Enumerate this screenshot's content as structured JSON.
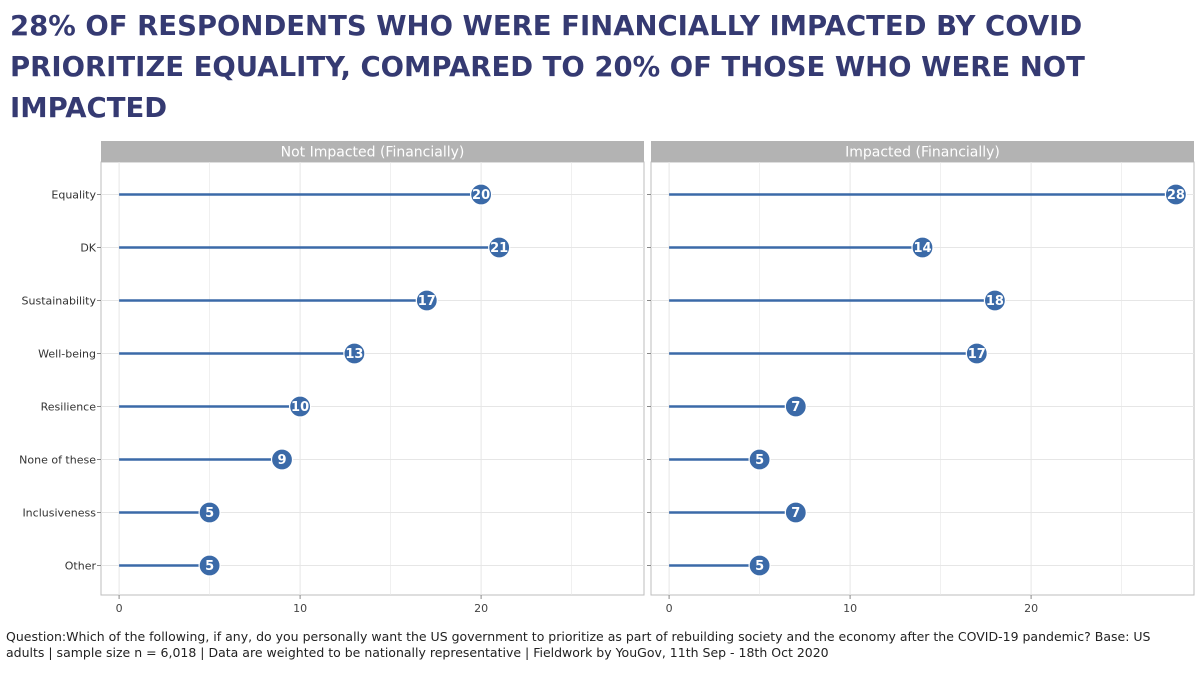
{
  "title": "28% OF RESPONDENTS WHO WERE FINANCIALLY IMPACTED BY COVID PRIORITIZE EQUALITY, COMPARED TO 20% OF THOSE WHO WERE NOT IMPACTED",
  "footnote": "Question:Which of the following, if any, do you personally want the US government to prioritize as part of rebuilding society and the economy after the COVID-19 pandemic? Base: US adults | sample size n = 6,018 | Data are weighted to be nationally representative | Fieldwork by YouGov, 11th Sep - 18th Oct 2020",
  "colors": {
    "line": "#3b6aa8",
    "dot": "#3b6aa8",
    "strip": "#b3b3b3",
    "grid": "#e6e6e6",
    "title": "#353a72"
  },
  "chart_data": {
    "type": "lollipop",
    "categories": [
      "Equality",
      "DK",
      "Sustainability",
      "Well-being",
      "Resilience",
      "None of these",
      "Inclusiveness",
      "Other"
    ],
    "xticks": [
      0,
      10,
      20
    ],
    "xlim": [
      -1,
      29
    ],
    "grid": true,
    "panels": [
      {
        "name": "Not Impacted (Financially)",
        "values": [
          20,
          21,
          17,
          13,
          10,
          9,
          5,
          5
        ]
      },
      {
        "name": "Impacted (Financially)",
        "values": [
          28,
          14,
          18,
          17,
          7,
          5,
          7,
          5
        ]
      }
    ]
  }
}
